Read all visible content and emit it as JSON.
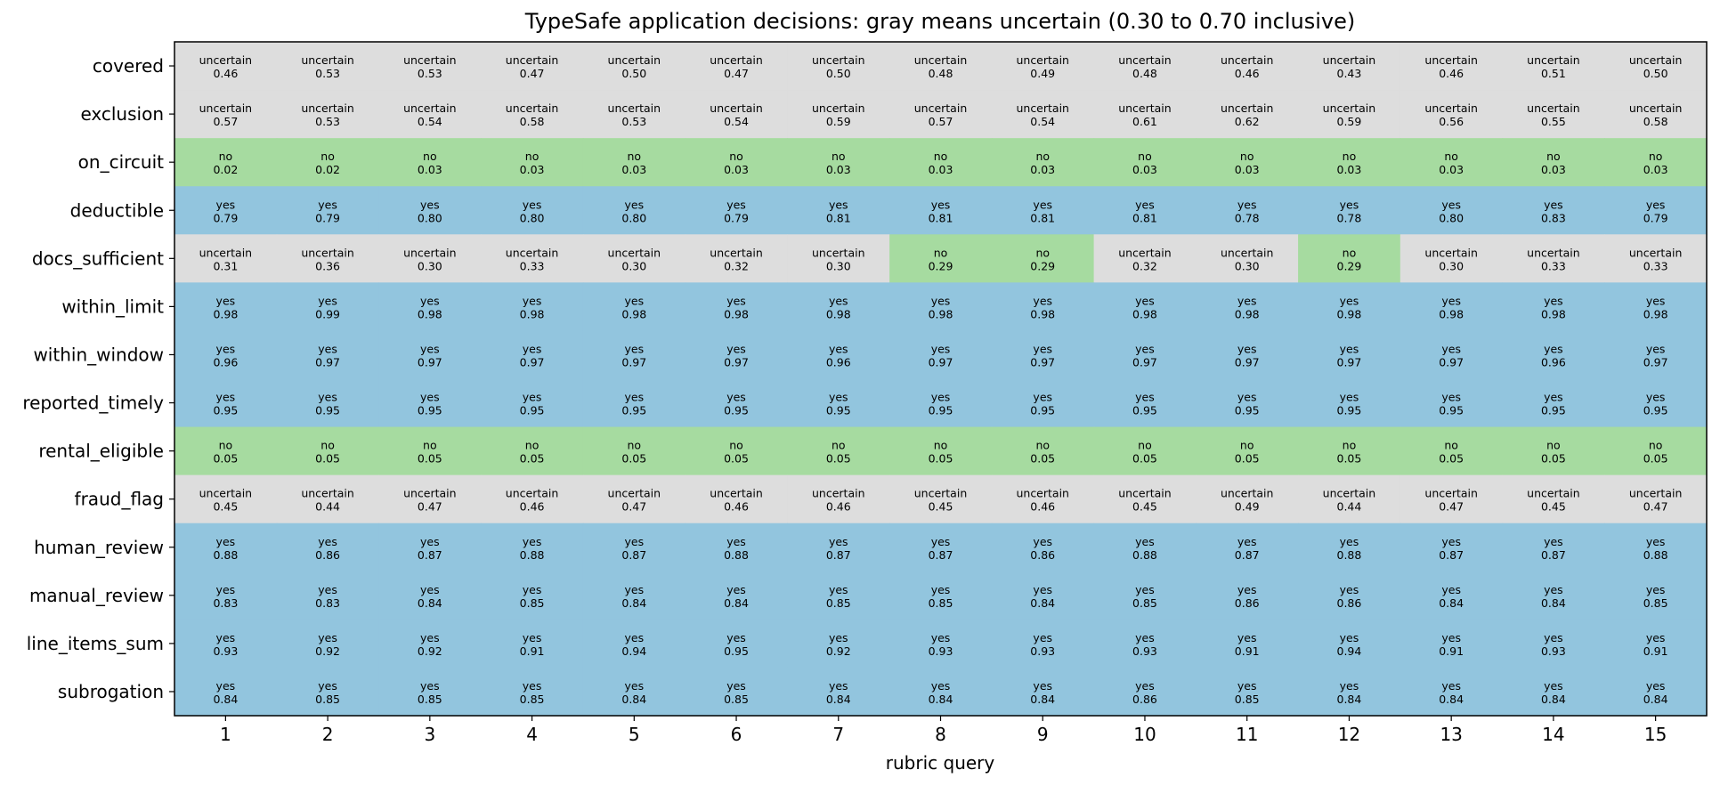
{
  "chart_data": {
    "type": "heatmap",
    "title": "TypeSafe application decisions: gray means uncertain (0.30 to 0.70 inclusive)",
    "xlabel": "rubric query",
    "ylabel": "",
    "x": [
      "1",
      "2",
      "3",
      "4",
      "5",
      "6",
      "7",
      "8",
      "9",
      "10",
      "11",
      "12",
      "13",
      "14",
      "15"
    ],
    "rows": [
      "covered",
      "exclusion",
      "on_circuit",
      "deductible",
      "docs_sufficient",
      "within_limit",
      "within_window",
      "reported_timely",
      "rental_eligible",
      "fraud_flag",
      "human_review",
      "manual_review",
      "line_items_sum",
      "subrogation"
    ],
    "values": [
      [
        0.46,
        0.53,
        0.53,
        0.47,
        0.5,
        0.47,
        0.5,
        0.48,
        0.49,
        0.48,
        0.46,
        0.43,
        0.46,
        0.51,
        0.5
      ],
      [
        0.57,
        0.53,
        0.54,
        0.58,
        0.53,
        0.54,
        0.59,
        0.57,
        0.54,
        0.61,
        0.62,
        0.59,
        0.56,
        0.55,
        0.58
      ],
      [
        0.02,
        0.02,
        0.03,
        0.03,
        0.03,
        0.03,
        0.03,
        0.03,
        0.03,
        0.03,
        0.03,
        0.03,
        0.03,
        0.03,
        0.03
      ],
      [
        0.79,
        0.79,
        0.8,
        0.8,
        0.8,
        0.79,
        0.81,
        0.81,
        0.81,
        0.81,
        0.78,
        0.78,
        0.8,
        0.83,
        0.79
      ],
      [
        0.31,
        0.36,
        0.3,
        0.33,
        0.3,
        0.32,
        0.3,
        0.29,
        0.29,
        0.32,
        0.3,
        0.29,
        0.3,
        0.33,
        0.33
      ],
      [
        0.98,
        0.99,
        0.98,
        0.98,
        0.98,
        0.98,
        0.98,
        0.98,
        0.98,
        0.98,
        0.98,
        0.98,
        0.98,
        0.98,
        0.98
      ],
      [
        0.96,
        0.97,
        0.97,
        0.97,
        0.97,
        0.97,
        0.96,
        0.97,
        0.97,
        0.97,
        0.97,
        0.97,
        0.97,
        0.96,
        0.97
      ],
      [
        0.95,
        0.95,
        0.95,
        0.95,
        0.95,
        0.95,
        0.95,
        0.95,
        0.95,
        0.95,
        0.95,
        0.95,
        0.95,
        0.95,
        0.95
      ],
      [
        0.05,
        0.05,
        0.05,
        0.05,
        0.05,
        0.05,
        0.05,
        0.05,
        0.05,
        0.05,
        0.05,
        0.05,
        0.05,
        0.05,
        0.05
      ],
      [
        0.45,
        0.44,
        0.47,
        0.46,
        0.47,
        0.46,
        0.46,
        0.45,
        0.46,
        0.45,
        0.49,
        0.44,
        0.47,
        0.45,
        0.47
      ],
      [
        0.88,
        0.86,
        0.87,
        0.88,
        0.87,
        0.88,
        0.87,
        0.87,
        0.86,
        0.88,
        0.87,
        0.88,
        0.87,
        0.87,
        0.88
      ],
      [
        0.83,
        0.83,
        0.84,
        0.85,
        0.84,
        0.84,
        0.85,
        0.85,
        0.84,
        0.85,
        0.86,
        0.86,
        0.84,
        0.84,
        0.85
      ],
      [
        0.93,
        0.92,
        0.92,
        0.91,
        0.94,
        0.95,
        0.92,
        0.93,
        0.93,
        0.93,
        0.91,
        0.94,
        0.91,
        0.93,
        0.91
      ],
      [
        0.84,
        0.85,
        0.85,
        0.85,
        0.84,
        0.85,
        0.84,
        0.84,
        0.84,
        0.86,
        0.85,
        0.84,
        0.84,
        0.84,
        0.84
      ]
    ],
    "labels": {
      "yes": "yes",
      "no": "no",
      "uncertain": "uncertain"
    },
    "thresholds": {
      "uncertain_min": 0.3,
      "uncertain_max": 0.7
    },
    "colors": {
      "yes": "#92c5de",
      "no": "#a6dba0",
      "uncertain": "#dddddd",
      "frame": "#000000"
    },
    "grid": false,
    "legend": "none"
  }
}
